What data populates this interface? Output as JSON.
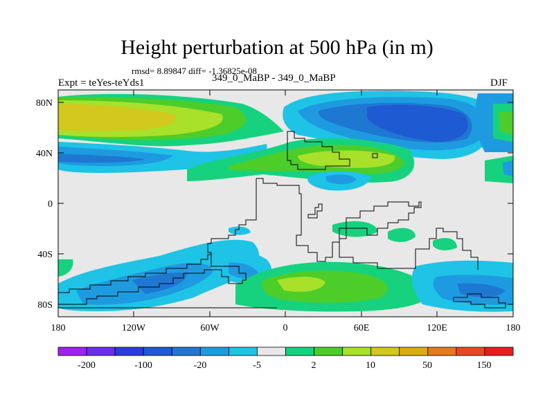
{
  "plot": {
    "title": "Height perturbation at 500 hPa (in m)",
    "stats": "rmsd= 8.89847 diff= -1.36825e-08",
    "experiment": "Expt = teYes-teYds1",
    "case_label": "349_0_MaBP - 349_0_MaBP",
    "season": "DJF"
  },
  "axes": {
    "lat_labels": [
      "80N",
      "40N",
      "0",
      "40S",
      "80S"
    ],
    "lon_labels": [
      "180",
      "120W",
      "60W",
      "0",
      "60E",
      "120E",
      "180"
    ]
  },
  "colorbar": {
    "labels": [
      "-200",
      "-100",
      "-20",
      "-5",
      "2",
      "10",
      "50",
      "150"
    ],
    "colors": [
      "#a020f0",
      "#6a2ee8",
      "#2c3cdc",
      "#1e5ad2",
      "#1e78d2",
      "#1e9be0",
      "#1ec3e6",
      "#e8e8e8",
      "#16d27e",
      "#4ccd2a",
      "#a8e02a",
      "#d2c81e",
      "#dcaa14",
      "#e6781e",
      "#e64b1e",
      "#e61e1e"
    ]
  },
  "chart_data": {
    "type": "heatmap",
    "title": "Height perturbation at 500 hPa (in m)",
    "subtitle": "349_0_MaBP - 349_0_MaBP",
    "season": "DJF",
    "rmsd": 8.89847,
    "diff": -1.36825e-08,
    "lon_range": [
      -180,
      180
    ],
    "lat_range": [
      -90,
      90
    ],
    "levels": [
      -200,
      -100,
      -20,
      -5,
      2,
      10,
      50,
      150
    ],
    "units": "m"
  }
}
